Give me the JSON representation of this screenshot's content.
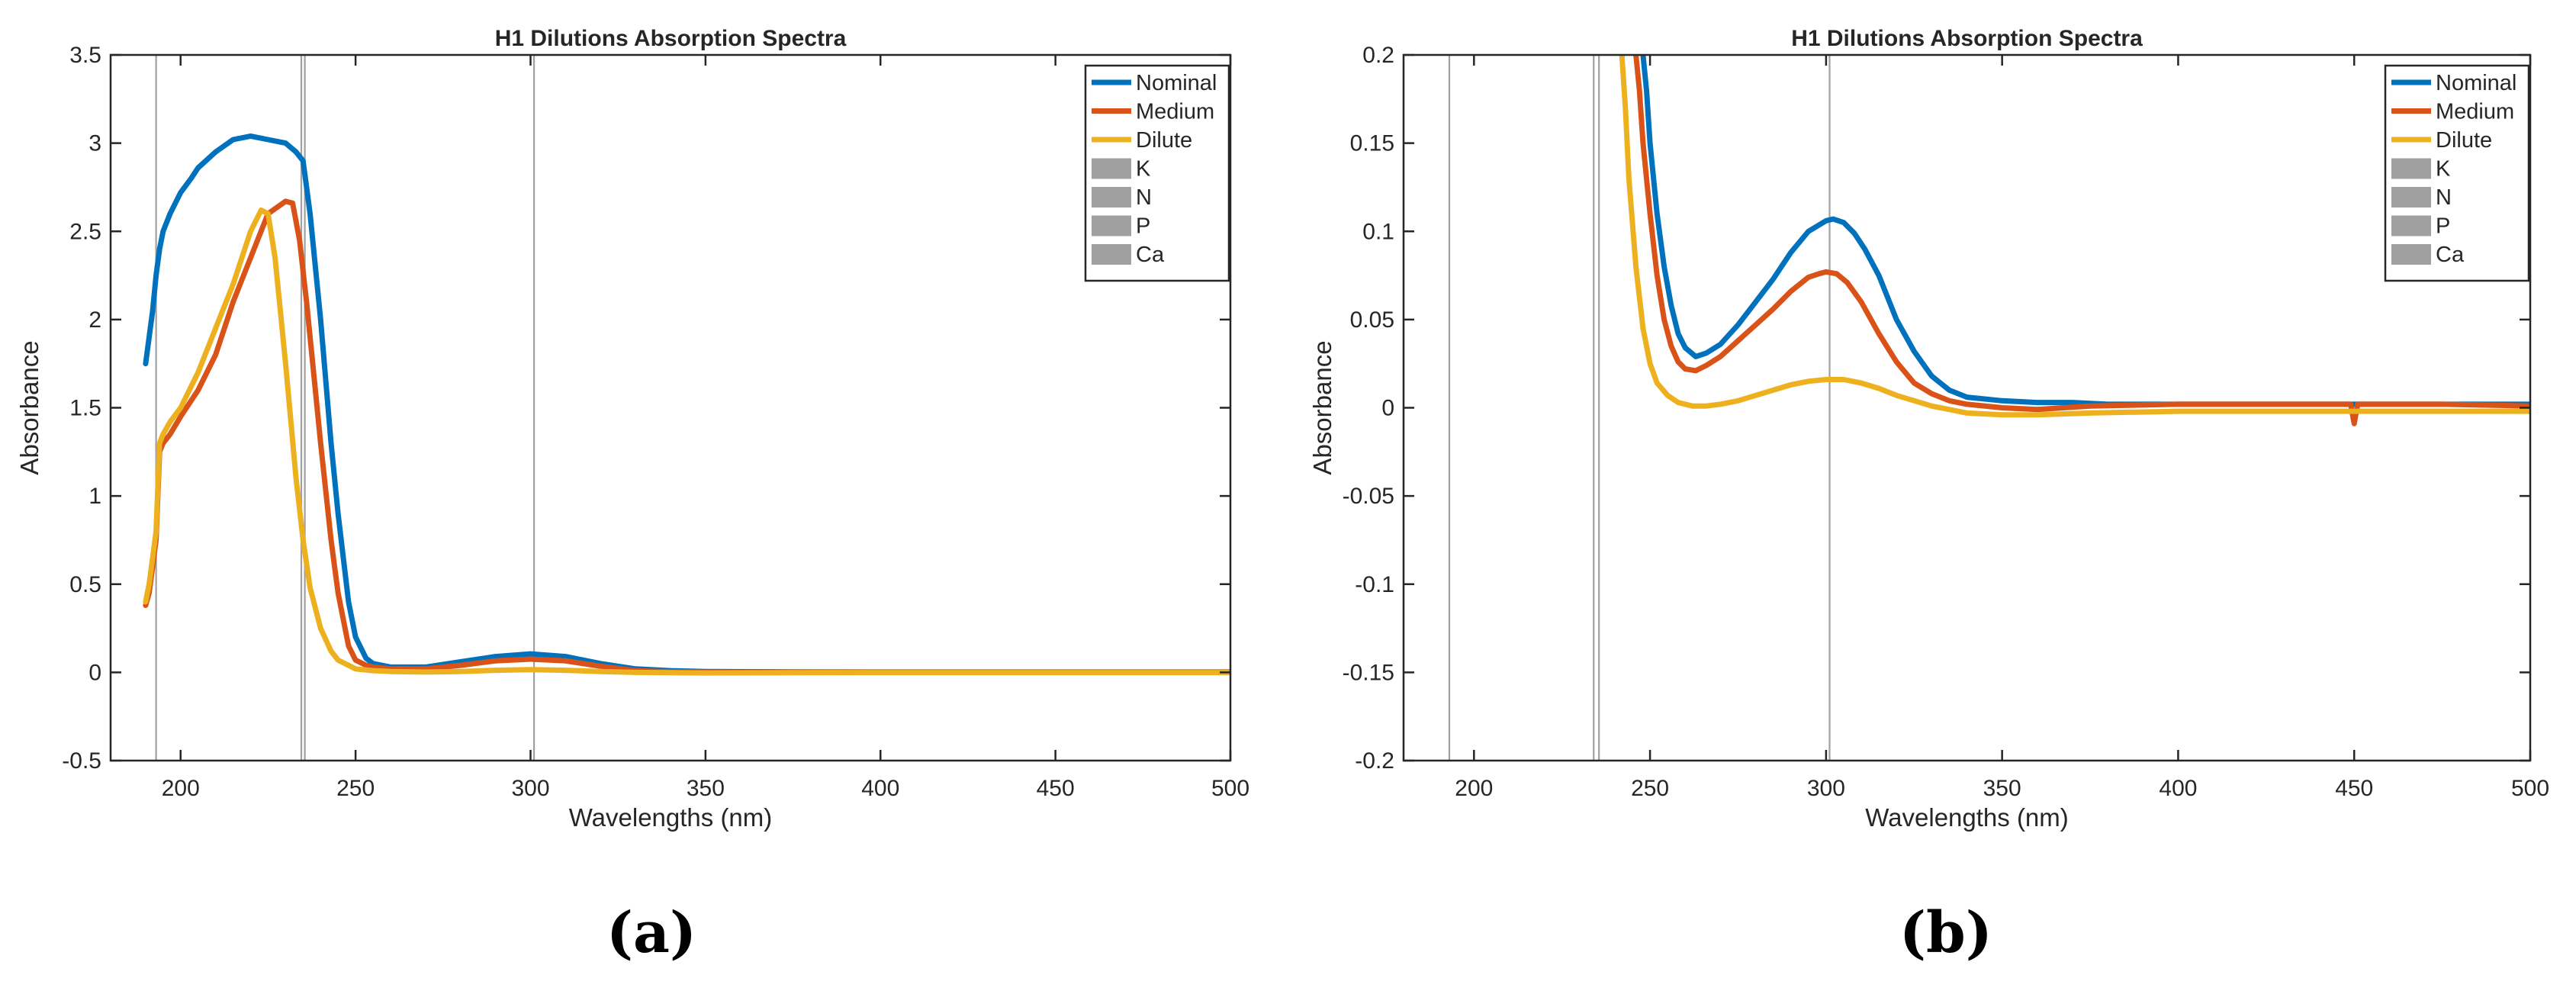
{
  "figure": {
    "panel_labels": [
      "(a)",
      "(b)"
    ]
  },
  "chart_data": [
    {
      "type": "line",
      "title": "H1 Dilutions Absorption Spectra",
      "xlabel": "Wavelengths (nm)",
      "ylabel": "Absorbance",
      "xlim": [
        180,
        500
      ],
      "ylim": [
        -0.5,
        3.5
      ],
      "xticks": [
        200,
        250,
        300,
        350,
        400,
        450,
        500
      ],
      "yticks": [
        -0.5,
        0,
        0.5,
        1,
        1.5,
        2,
        2.5,
        3,
        3.5
      ],
      "ytick_labels": [
        "-0.5",
        "0",
        "0.5",
        "1",
        "1.5",
        "2",
        "2.5",
        "3",
        "3.5"
      ],
      "grid": false,
      "legend_position": "top-right",
      "vertical_lines": [
        {
          "name": "K",
          "x": 193
        },
        {
          "name": "N",
          "x": 234.5
        },
        {
          "name": "P",
          "x": 235.5
        },
        {
          "name": "Ca",
          "x": 301
        }
      ],
      "series": [
        {
          "name": "Nominal",
          "color": "#0072BD",
          "x": [
            190,
            191,
            192,
            193,
            194,
            195,
            197,
            200,
            203,
            205,
            210,
            215,
            220,
            225,
            230,
            233,
            235,
            237,
            240,
            243,
            245,
            248,
            250,
            253,
            255,
            260,
            270,
            280,
            290,
            300,
            310,
            320,
            330,
            340,
            350,
            375,
            400,
            450,
            500
          ],
          "y": [
            1.75,
            1.9,
            2.05,
            2.25,
            2.4,
            2.5,
            2.6,
            2.72,
            2.8,
            2.86,
            2.95,
            3.02,
            3.04,
            3.02,
            3.0,
            2.95,
            2.9,
            2.6,
            2.0,
            1.3,
            0.9,
            0.4,
            0.2,
            0.08,
            0.05,
            0.03,
            0.03,
            0.06,
            0.09,
            0.105,
            0.09,
            0.05,
            0.02,
            0.01,
            0.005,
            0.003,
            0.002,
            0.002,
            0.002
          ]
        },
        {
          "name": "Medium",
          "color": "#D95319",
          "x": [
            190,
            191,
            192,
            193,
            194,
            195,
            197,
            200,
            205,
            210,
            215,
            220,
            225,
            230,
            232,
            234,
            236,
            238,
            240,
            243,
            245,
            248,
            250,
            253,
            255,
            260,
            270,
            280,
            290,
            300,
            310,
            320,
            330,
            340,
            350,
            375,
            400,
            450,
            500
          ],
          "y": [
            0.38,
            0.45,
            0.6,
            0.75,
            1.25,
            1.3,
            1.35,
            1.45,
            1.6,
            1.8,
            2.1,
            2.35,
            2.6,
            2.67,
            2.66,
            2.45,
            2.1,
            1.7,
            1.3,
            0.75,
            0.45,
            0.15,
            0.07,
            0.04,
            0.03,
            0.02,
            0.02,
            0.04,
            0.065,
            0.075,
            0.065,
            0.035,
            0.01,
            0.003,
            0.001,
            0.001,
            0.001,
            0.001,
            0.001
          ]
        },
        {
          "name": "Dilute",
          "color": "#EDB120",
          "x": [
            190,
            191,
            192,
            193,
            194,
            195,
            197,
            200,
            205,
            210,
            215,
            220,
            223,
            225,
            227,
            230,
            233,
            235,
            237,
            240,
            243,
            245,
            250,
            255,
            260,
            270,
            280,
            290,
            300,
            310,
            320,
            330,
            340,
            350,
            375,
            400,
            450,
            500
          ],
          "y": [
            0.4,
            0.5,
            0.65,
            0.8,
            1.3,
            1.35,
            1.42,
            1.5,
            1.7,
            1.95,
            2.2,
            2.5,
            2.62,
            2.6,
            2.35,
            1.75,
            1.1,
            0.75,
            0.48,
            0.25,
            0.12,
            0.07,
            0.02,
            0.01,
            0.005,
            0.002,
            0.005,
            0.012,
            0.016,
            0.012,
            0.005,
            0.0,
            -0.002,
            -0.003,
            -0.002,
            -0.001,
            -0.001,
            -0.001
          ]
        }
      ]
    },
    {
      "type": "line",
      "title": "H1 Dilutions Absorption Spectra",
      "xlabel": "Wavelengths (nm)",
      "ylabel": "Absorbance",
      "xlim": [
        180,
        500
      ],
      "ylim": [
        -0.2,
        0.2
      ],
      "xticks": [
        200,
        250,
        300,
        350,
        400,
        450,
        500
      ],
      "yticks": [
        -0.2,
        -0.15,
        -0.1,
        -0.05,
        0,
        0.05,
        0.1,
        0.15,
        0.2
      ],
      "ytick_labels": [
        "-0.2",
        "-0.15",
        "-0.1",
        "-0.05",
        "0",
        "0.05",
        "0.1",
        "0.15",
        "0.2"
      ],
      "grid": false,
      "legend_position": "top-right",
      "vertical_lines": [
        {
          "name": "K",
          "x": 193
        },
        {
          "name": "N",
          "x": 234
        },
        {
          "name": "P",
          "x": 235.5
        },
        {
          "name": "Ca",
          "x": 301
        }
      ],
      "series": [
        {
          "name": "Nominal",
          "color": "#0072BD",
          "x": [
            248,
            249,
            250,
            252,
            254,
            256,
            258,
            260,
            263,
            266,
            270,
            275,
            280,
            285,
            290,
            295,
            300,
            302,
            305,
            308,
            311,
            315,
            320,
            325,
            330,
            335,
            340,
            350,
            360,
            370,
            380,
            400,
            425,
            450,
            475,
            500
          ],
          "y": [
            0.2,
            0.18,
            0.15,
            0.11,
            0.08,
            0.058,
            0.042,
            0.034,
            0.029,
            0.031,
            0.036,
            0.047,
            0.06,
            0.073,
            0.088,
            0.1,
            0.106,
            0.107,
            0.105,
            0.099,
            0.09,
            0.075,
            0.05,
            0.032,
            0.018,
            0.01,
            0.006,
            0.004,
            0.003,
            0.003,
            0.002,
            0.002,
            0.002,
            0.002,
            0.002,
            0.002
          ]
        },
        {
          "name": "Medium",
          "color": "#D95319",
          "x": [
            246,
            247,
            248,
            250,
            252,
            254,
            256,
            258,
            260,
            263,
            266,
            270,
            275,
            280,
            285,
            290,
            295,
            298,
            300,
            303,
            306,
            310,
            315,
            320,
            325,
            330,
            335,
            340,
            350,
            360,
            375,
            400,
            425,
            449,
            450,
            451,
            475,
            500
          ],
          "y": [
            0.2,
            0.18,
            0.15,
            0.11,
            0.075,
            0.05,
            0.035,
            0.026,
            0.022,
            0.021,
            0.024,
            0.029,
            0.038,
            0.047,
            0.056,
            0.066,
            0.074,
            0.076,
            0.077,
            0.076,
            0.071,
            0.06,
            0.042,
            0.026,
            0.014,
            0.008,
            0.004,
            0.002,
            0.0,
            -0.001,
            0.001,
            0.002,
            0.002,
            0.002,
            -0.009,
            0.002,
            0.002,
            0.001
          ]
        },
        {
          "name": "Dilute",
          "color": "#EDB120",
          "x": [
            242,
            243,
            244,
            246,
            248,
            250,
            252,
            255,
            258,
            262,
            266,
            270,
            275,
            280,
            285,
            290,
            295,
            300,
            305,
            310,
            315,
            320,
            330,
            340,
            350,
            360,
            375,
            400,
            425,
            450,
            475,
            500
          ],
          "y": [
            0.2,
            0.17,
            0.13,
            0.08,
            0.045,
            0.025,
            0.014,
            0.007,
            0.003,
            0.001,
            0.001,
            0.002,
            0.004,
            0.007,
            0.01,
            0.013,
            0.015,
            0.016,
            0.016,
            0.014,
            0.011,
            0.007,
            0.001,
            -0.003,
            -0.004,
            -0.004,
            -0.003,
            -0.002,
            -0.002,
            -0.002,
            -0.002,
            -0.002
          ]
        }
      ]
    }
  ]
}
